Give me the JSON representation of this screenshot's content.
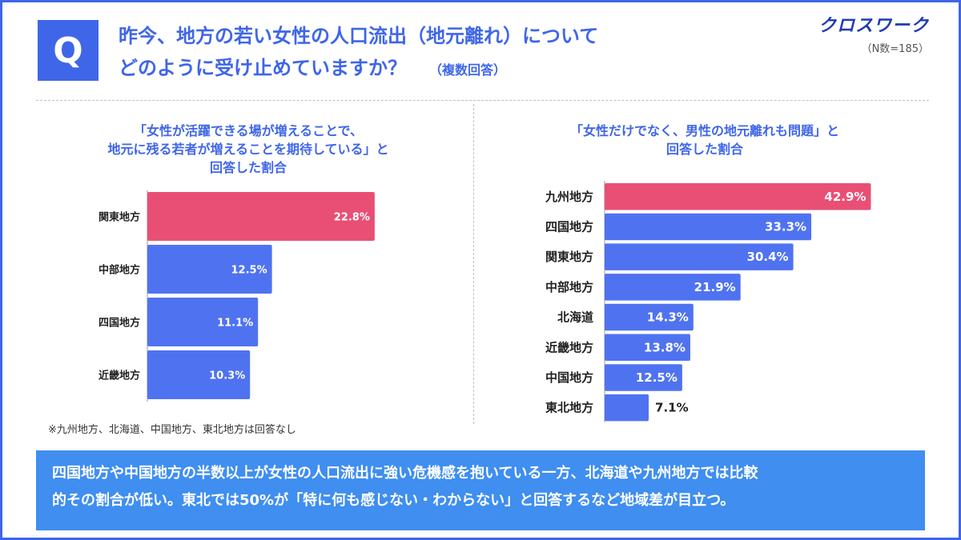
{
  "header": {
    "q_badge": "Q",
    "question_line1": "昨今、地方の若い女性の人口流出（地元離れ）について",
    "question_line2": "どのように受け止めていますか？",
    "multi_answer": "（複数回答）",
    "logo_text": "クロスワーク",
    "sample_size": "（N数=185）"
  },
  "colors": {
    "accent": "#3f66e8",
    "highlight": "#e94f75",
    "bar": "#4f73f0",
    "summary_bg": "#3f8ef0"
  },
  "chart_data": [
    {
      "type": "bar",
      "orientation": "horizontal",
      "title_lines": [
        "「女性が活躍できる場が増えることで、",
        "地元に残る若者が増えることを期待している」と",
        "回答した割合"
      ],
      "categories": [
        "関東地方",
        "中部地方",
        "四国地方",
        "近畿地方"
      ],
      "values": [
        22.8,
        12.5,
        11.1,
        10.3
      ],
      "labels": [
        "22.8%",
        "12.5%",
        "11.1%",
        "10.3%"
      ],
      "xlim": [
        0,
        45
      ],
      "highlight_index": 0
    },
    {
      "type": "bar",
      "orientation": "horizontal",
      "title_lines": [
        "「女性だけでなく、男性の地元離れも問題」と",
        "回答した割合"
      ],
      "categories": [
        "九州地方",
        "四国地方",
        "関東地方",
        "中部地方",
        "北海道",
        "近畿地方",
        "中国地方",
        "東北地方"
      ],
      "values": [
        42.9,
        33.3,
        30.4,
        21.9,
        14.3,
        13.8,
        12.5,
        7.1
      ],
      "labels": [
        "42.9%",
        "33.3%",
        "30.4%",
        "21.9%",
        "14.3%",
        "13.8%",
        "12.5%",
        "7.1%"
      ],
      "xlim": [
        0,
        45
      ],
      "highlight_index": 0
    }
  ],
  "note": "※九州地方、北海道、中国地方、東北地方は回答なし",
  "summary": {
    "line1": "四国地方や中国地方の半数以上が女性の人口流出に強い危機感を抱いている一方、北海道や九州地方では比較",
    "line2": "的その割合が低い。東北では50%が「特に何も感じない・わからない」と回答するなど地域差が目立つ。"
  }
}
